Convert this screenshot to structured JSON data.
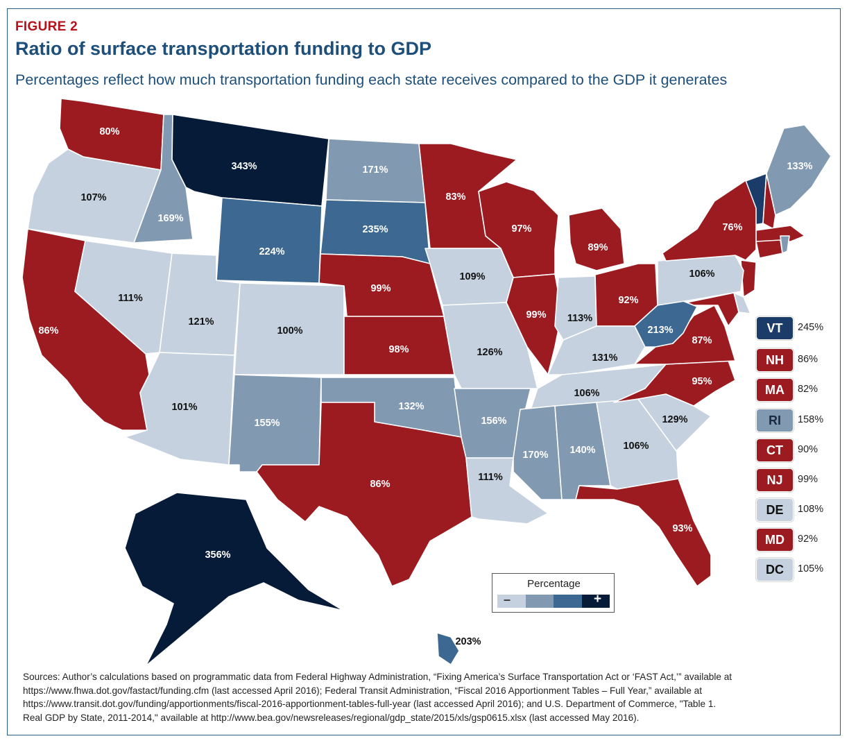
{
  "figure_label": "FIGURE 2",
  "title": "Ratio of surface transportation funding to GDP",
  "subtitle": "Percentages reflect how much transportation funding each state receives compared to the GDP it generates",
  "colors": {
    "red": "#9b1b20",
    "lightest_blue": "#c5d1de",
    "light_blue": "#8199b1",
    "medium_blue": "#3c6891",
    "dark_navy": "#061b37",
    "navy_mid": "#1b3c69",
    "border": "#2a5b84"
  },
  "states": [
    {
      "id": "WA",
      "value": "80%",
      "color": "red"
    },
    {
      "id": "OR",
      "value": "107%",
      "color": "lightest_blue"
    },
    {
      "id": "CA",
      "value": "86%",
      "color": "red"
    },
    {
      "id": "ID",
      "value": "169%",
      "color": "light_blue"
    },
    {
      "id": "NV",
      "value": "111%",
      "color": "lightest_blue"
    },
    {
      "id": "MT",
      "value": "343%",
      "color": "dark_navy"
    },
    {
      "id": "WY",
      "value": "224%",
      "color": "medium_blue"
    },
    {
      "id": "UT",
      "value": "121%",
      "color": "lightest_blue"
    },
    {
      "id": "AZ",
      "value": "101%",
      "color": "lightest_blue"
    },
    {
      "id": "CO",
      "value": "100%",
      "color": "lightest_blue"
    },
    {
      "id": "NM",
      "value": "155%",
      "color": "light_blue"
    },
    {
      "id": "ND",
      "value": "171%",
      "color": "light_blue"
    },
    {
      "id": "SD",
      "value": "235%",
      "color": "medium_blue"
    },
    {
      "id": "NE",
      "value": "99%",
      "color": "red"
    },
    {
      "id": "KS",
      "value": "98%",
      "color": "red"
    },
    {
      "id": "OK",
      "value": "132%",
      "color": "light_blue"
    },
    {
      "id": "TX",
      "value": "86%",
      "color": "red"
    },
    {
      "id": "MN",
      "value": "83%",
      "color": "red"
    },
    {
      "id": "IA",
      "value": "109%",
      "color": "lightest_blue"
    },
    {
      "id": "MO",
      "value": "126%",
      "color": "lightest_blue"
    },
    {
      "id": "AR",
      "value": "156%",
      "color": "light_blue"
    },
    {
      "id": "LA",
      "value": "111%",
      "color": "lightest_blue"
    },
    {
      "id": "WI",
      "value": "97%",
      "color": "red"
    },
    {
      "id": "IL",
      "value": "99%",
      "color": "red"
    },
    {
      "id": "MI",
      "value": "89%",
      "color": "red"
    },
    {
      "id": "IN",
      "value": "113%",
      "color": "lightest_blue"
    },
    {
      "id": "OH",
      "value": "92%",
      "color": "red"
    },
    {
      "id": "KY",
      "value": "131%",
      "color": "lightest_blue"
    },
    {
      "id": "TN",
      "value": "106%",
      "color": "lightest_blue"
    },
    {
      "id": "MS",
      "value": "170%",
      "color": "light_blue"
    },
    {
      "id": "AL",
      "value": "140%",
      "color": "light_blue"
    },
    {
      "id": "GA",
      "value": "106%",
      "color": "lightest_blue"
    },
    {
      "id": "FL",
      "value": "93%",
      "color": "red"
    },
    {
      "id": "SC",
      "value": "129%",
      "color": "lightest_blue"
    },
    {
      "id": "NC",
      "value": "95%",
      "color": "red"
    },
    {
      "id": "VA",
      "value": "87%",
      "color": "red"
    },
    {
      "id": "WV",
      "value": "213%",
      "color": "medium_blue"
    },
    {
      "id": "PA",
      "value": "106%",
      "color": "lightest_blue"
    },
    {
      "id": "NY",
      "value": "76%",
      "color": "red"
    },
    {
      "id": "ME",
      "value": "133%",
      "color": "light_blue"
    },
    {
      "id": "AK",
      "value": "356%",
      "color": "dark_navy"
    },
    {
      "id": "HI",
      "value": "203%",
      "color": "medium_blue"
    }
  ],
  "sidebar": [
    {
      "abbr": "VT",
      "value": "245%",
      "color": "navy_mid"
    },
    {
      "abbr": "NH",
      "value": "86%",
      "color": "red"
    },
    {
      "abbr": "MA",
      "value": "82%",
      "color": "red"
    },
    {
      "abbr": "RI",
      "value": "158%",
      "color": "light_blue"
    },
    {
      "abbr": "CT",
      "value": "90%",
      "color": "red"
    },
    {
      "abbr": "NJ",
      "value": "99%",
      "color": "red"
    },
    {
      "abbr": "DE",
      "value": "108%",
      "color": "lightest_blue"
    },
    {
      "abbr": "MD",
      "value": "92%",
      "color": "red"
    },
    {
      "abbr": "DC",
      "value": "105%",
      "color": "lightest_blue"
    }
  ],
  "legend": {
    "title": "Percentage",
    "minus": "–",
    "plus": "+",
    "scale_colors": [
      "lightest_blue",
      "light_blue",
      "medium_blue",
      "dark_navy"
    ]
  },
  "sources": {
    "line1": "Sources: Author’s calculations based on programmatic data from Federal Highway Administration, “Fixing America’s Surface Transportation Act or ‘FAST Act,’” available at",
    "line2": "https://www.fhwa.dot.gov/fastact/funding.cfm (last accessed April 2016); Federal Transit Administration, “Fiscal 2016 Apportionment Tables – Full Year,” available at",
    "line3": "https://www.transit.dot.gov/funding/apportionments/fiscal-2016-apportionment-tables-full-year (last accessed April 2016); and U.S. Department of Commerce, \"Table 1.",
    "line4": "Real GDP by State, 2011-2014,\" available at http://www.bea.gov/newsreleases/regional/gdp_state/2015/xls/gsp0615.xlsx (last accessed May 2016)."
  }
}
